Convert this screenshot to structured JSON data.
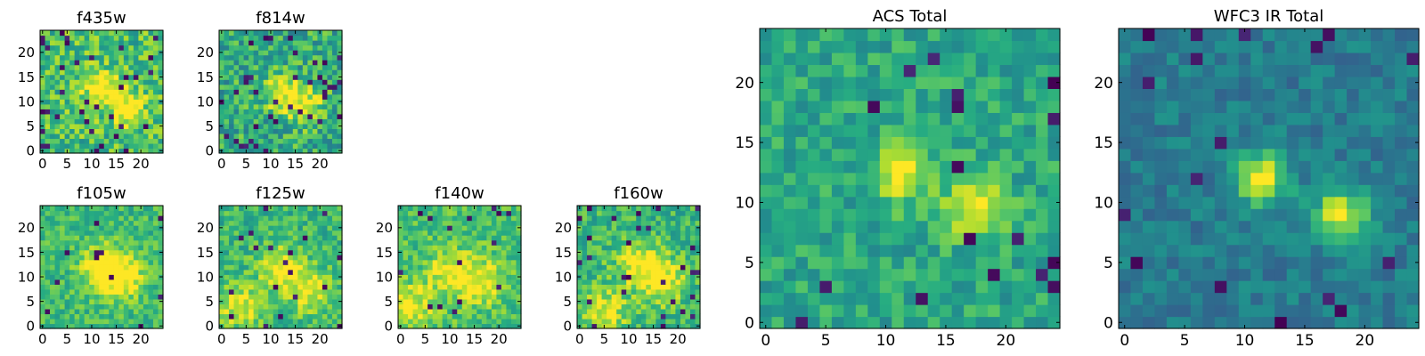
{
  "chart_data": [
    {
      "type": "heatmap",
      "title": "f435w",
      "colormap": "viridis",
      "xlim": [
        0,
        25
      ],
      "ylim": [
        0,
        25
      ],
      "xticks": [
        0,
        5,
        10,
        15,
        20
      ],
      "yticks": [
        0,
        5,
        10,
        15,
        20
      ],
      "grid": false,
      "source_peaks": [
        [
          12,
          13
        ],
        [
          17,
          9
        ]
      ],
      "background_level": "noisy green-yellow",
      "values": []
    },
    {
      "type": "heatmap",
      "title": "f814w",
      "colormap": "viridis",
      "xlim": [
        0,
        25
      ],
      "ylim": [
        0,
        25
      ],
      "xticks": [
        0,
        5,
        10,
        15,
        20
      ],
      "yticks": [
        0,
        5,
        10,
        15,
        20
      ],
      "grid": false,
      "source_peaks": [
        [
          12,
          12
        ],
        [
          17,
          9
        ]
      ],
      "values": []
    },
    {
      "type": "heatmap",
      "title": "f105w",
      "colormap": "viridis",
      "xlim": [
        0,
        25
      ],
      "ylim": [
        0,
        25
      ],
      "xticks": [
        0,
        5,
        10,
        15,
        20
      ],
      "yticks": [
        0,
        5,
        10,
        15,
        20
      ],
      "grid": false,
      "source_peaks": [
        [
          12,
          12
        ],
        [
          16,
          10
        ]
      ],
      "values": []
    },
    {
      "type": "heatmap",
      "title": "f125w",
      "colormap": "viridis",
      "xlim": [
        0,
        25
      ],
      "ylim": [
        0,
        25
      ],
      "xticks": [
        0,
        5,
        10,
        15,
        20
      ],
      "yticks": [
        0,
        5,
        10,
        15,
        20
      ],
      "grid": false,
      "source_peaks": [
        [
          4,
          4
        ],
        [
          12,
          12
        ],
        [
          18,
          7
        ]
      ],
      "values": []
    },
    {
      "type": "heatmap",
      "title": "f140w",
      "colormap": "viridis",
      "xlim": [
        0,
        25
      ],
      "ylim": [
        0,
        25
      ],
      "xticks": [
        0,
        5,
        10,
        15,
        20
      ],
      "yticks": [
        0,
        5,
        10,
        15,
        20
      ],
      "grid": false,
      "source_peaks": [
        [
          2,
          4
        ],
        [
          10,
          11
        ],
        [
          17,
          9
        ]
      ],
      "values": []
    },
    {
      "type": "heatmap",
      "title": "f160w",
      "colormap": "viridis",
      "xlim": [
        0,
        25
      ],
      "ylim": [
        0,
        25
      ],
      "xticks": [
        0,
        5,
        10,
        15,
        20
      ],
      "yticks": [
        0,
        5,
        10,
        15,
        20
      ],
      "grid": false,
      "source_peaks": [
        [
          5,
          3
        ],
        [
          12,
          13
        ],
        [
          17,
          9
        ]
      ],
      "values": []
    },
    {
      "type": "heatmap",
      "title": "ACS Total",
      "colormap": "viridis",
      "xlim": [
        0,
        25
      ],
      "ylim": [
        0,
        25
      ],
      "xticks": [
        0,
        5,
        10,
        15,
        20
      ],
      "yticks": [
        0,
        5,
        10,
        15,
        20
      ],
      "grid": false,
      "source_peaks": [
        [
          11.5,
          12.5
        ],
        [
          17.5,
          9.5
        ]
      ],
      "values": []
    },
    {
      "type": "heatmap",
      "title": "WFC3 IR Total",
      "colormap": "viridis",
      "xlim": [
        0,
        25
      ],
      "ylim": [
        0,
        25
      ],
      "xticks": [
        0,
        5,
        10,
        15,
        20
      ],
      "yticks": [
        0,
        5,
        10,
        15,
        20
      ],
      "grid": false,
      "source_peaks": [
        [
          11.5,
          12
        ],
        [
          18,
          9
        ]
      ],
      "values": []
    }
  ]
}
